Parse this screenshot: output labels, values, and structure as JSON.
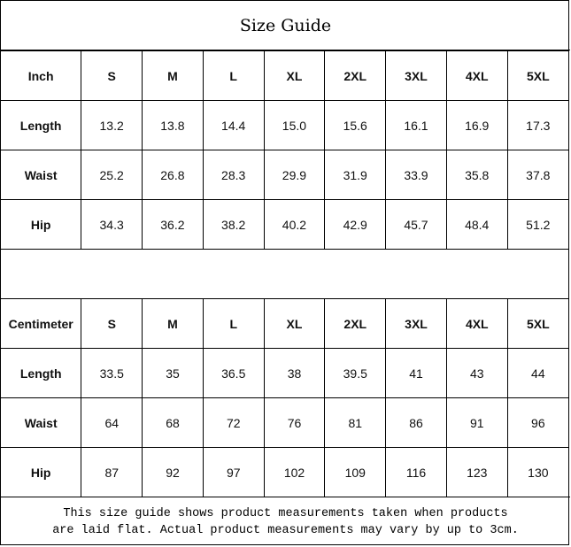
{
  "title": "Size Guide",
  "tables": [
    {
      "unit": "Inch",
      "sizes": [
        "S",
        "M",
        "L",
        "XL",
        "2XL",
        "3XL",
        "4XL",
        "5XL"
      ],
      "rows": [
        {
          "label": "Length",
          "values": [
            "13.2",
            "13.8",
            "14.4",
            "15.0",
            "15.6",
            "16.1",
            "16.9",
            "17.3"
          ]
        },
        {
          "label": "Waist",
          "values": [
            "25.2",
            "26.8",
            "28.3",
            "29.9",
            "31.9",
            "33.9",
            "35.8",
            "37.8"
          ]
        },
        {
          "label": "Hip",
          "values": [
            "34.3",
            "36.2",
            "38.2",
            "40.2",
            "42.9",
            "45.7",
            "48.4",
            "51.2"
          ]
        }
      ]
    },
    {
      "unit": "Centimeter",
      "sizes": [
        "S",
        "M",
        "L",
        "XL",
        "2XL",
        "3XL",
        "4XL",
        "5XL"
      ],
      "rows": [
        {
          "label": "Length",
          "values": [
            "33.5",
            "35",
            "36.5",
            "38",
            "39.5",
            "41",
            "43",
            "44"
          ]
        },
        {
          "label": "Waist",
          "values": [
            "64",
            "68",
            "72",
            "76",
            "81",
            "86",
            "91",
            "96"
          ]
        },
        {
          "label": "Hip",
          "values": [
            "87",
            "92",
            "97",
            "102",
            "109",
            "116",
            "123",
            "130"
          ]
        }
      ]
    }
  ],
  "footer": {
    "line1": "This size guide shows product measurements taken when products",
    "line2": "are laid flat. Actual product measurements may vary by up to 3cm."
  }
}
